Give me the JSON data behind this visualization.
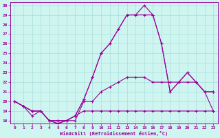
{
  "xlabel": "Windchill (Refroidissement éolien,°C)",
  "bg_color": "#cef5f0",
  "line_color": "#990099",
  "grid_color": "#aadddd",
  "xlim": [
    -0.5,
    23.5
  ],
  "ylim": [
    17.7,
    30.3
  ],
  "yticks": [
    18,
    19,
    20,
    21,
    22,
    23,
    24,
    25,
    26,
    27,
    28,
    29,
    30
  ],
  "xticks": [
    0,
    1,
    2,
    3,
    4,
    5,
    6,
    7,
    8,
    9,
    10,
    11,
    12,
    13,
    14,
    15,
    16,
    17,
    18,
    19,
    20,
    21,
    22,
    23
  ],
  "series1_x": [
    0,
    1,
    2,
    3,
    4,
    5,
    6,
    7,
    8,
    9,
    10,
    11,
    12,
    13,
    14,
    15,
    16,
    17,
    18,
    19,
    20,
    21,
    22,
    23
  ],
  "series1_y": [
    20,
    19.5,
    19,
    19,
    18,
    18,
    18,
    18.5,
    19,
    19,
    19,
    19,
    19,
    19,
    19,
    19,
    19,
    19,
    19,
    19,
    19,
    19,
    19,
    19
  ],
  "series2_x": [
    0,
    1,
    2,
    3,
    4,
    5,
    6,
    7,
    8,
    9,
    10,
    11,
    12,
    13,
    14,
    15,
    16,
    17,
    18,
    19,
    20,
    21,
    22,
    23
  ],
  "series2_y": [
    20,
    19.5,
    19,
    19,
    18,
    18,
    18,
    18,
    20,
    20,
    21,
    21.5,
    22,
    22.5,
    22.5,
    22.5,
    22,
    22,
    22,
    22,
    22,
    22,
    21,
    19
  ],
  "series3_x": [
    0,
    1,
    2,
    3,
    4,
    5,
    6,
    7,
    8,
    9,
    10,
    11,
    12,
    13,
    14,
    15,
    16,
    17,
    18,
    19,
    20,
    21,
    22,
    23
  ],
  "series3_y": [
    20,
    19.5,
    18.5,
    19,
    18,
    17.7,
    18,
    18.5,
    20.2,
    22.5,
    25,
    26,
    27.5,
    29,
    29,
    29,
    29,
    26,
    21,
    22,
    23,
    22,
    21,
    21
  ],
  "series4_x": [
    0,
    1,
    2,
    3,
    4,
    5,
    6,
    7,
    8,
    9,
    10,
    11,
    12,
    13,
    14,
    15,
    16,
    17,
    18,
    19,
    20,
    21,
    22,
    23
  ],
  "series4_y": [
    20,
    19.5,
    19,
    19,
    18,
    17.7,
    18,
    18.5,
    20.2,
    22.5,
    25,
    26,
    27.5,
    29,
    29,
    30,
    29,
    26,
    21,
    22,
    23,
    22,
    21,
    21
  ],
  "marker": "+"
}
